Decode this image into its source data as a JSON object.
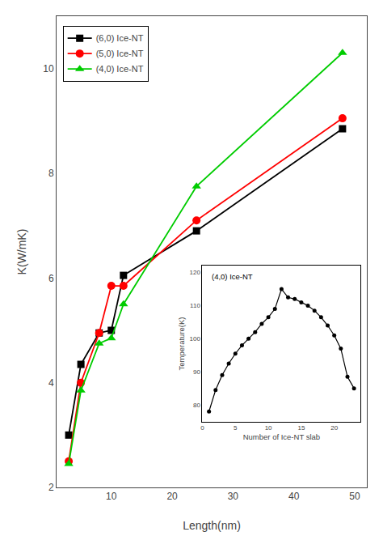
{
  "chart_data": [
    {
      "type": "line",
      "xlabel": "Length(nm)",
      "ylabel": "K(W/mK)",
      "xlim": [
        1,
        52
      ],
      "ylim": [
        2,
        11
      ],
      "xticks": [
        10,
        20,
        30,
        40,
        50
      ],
      "yticks": [
        2,
        4,
        6,
        8,
        10
      ],
      "grid": false,
      "legend": "upper left",
      "x": [
        3,
        5,
        8,
        10,
        12,
        24,
        48
      ],
      "series": [
        {
          "name": "(6,0) Ice-NT",
          "color": "black",
          "marker": "square",
          "values": [
            3.0,
            4.35,
            4.95,
            5.0,
            6.05,
            6.9,
            8.85
          ]
        },
        {
          "name": "(5,0) Ice-NT",
          "color": "red",
          "marker": "circle",
          "values": [
            2.5,
            4.0,
            4.95,
            5.85,
            5.85,
            7.1,
            9.05
          ]
        },
        {
          "name": "(4,0) Ice-NT",
          "color": "#00cc00",
          "marker": "triangle-up",
          "values": [
            2.45,
            3.85,
            4.75,
            4.85,
            5.5,
            7.75,
            10.3
          ]
        }
      ]
    },
    {
      "type": "line",
      "annotations": [
        "(4,0) Ice-NT"
      ],
      "xlabel": "Number of Ice-NT slab",
      "ylabel": "Temperature(K)",
      "xlim": [
        0,
        24
      ],
      "ylim": [
        75,
        122
      ],
      "xticks": [
        0,
        5,
        10,
        15,
        20
      ],
      "yticks": [
        80,
        90,
        100,
        110,
        120
      ],
      "grid": false,
      "x": [
        1,
        2,
        3,
        4,
        5,
        6,
        7,
        8,
        9,
        10,
        11,
        12,
        13,
        14,
        15,
        16,
        17,
        18,
        19,
        20,
        21,
        22,
        23
      ],
      "series": [
        {
          "color": "black",
          "marker": "circle",
          "values": [
            78,
            84.5,
            89,
            92.5,
            95.5,
            98,
            100,
            102,
            104.5,
            106.5,
            109,
            115,
            112.5,
            112,
            111,
            110,
            108.5,
            106.5,
            104,
            101,
            97,
            88.5,
            85
          ]
        }
      ]
    }
  ]
}
